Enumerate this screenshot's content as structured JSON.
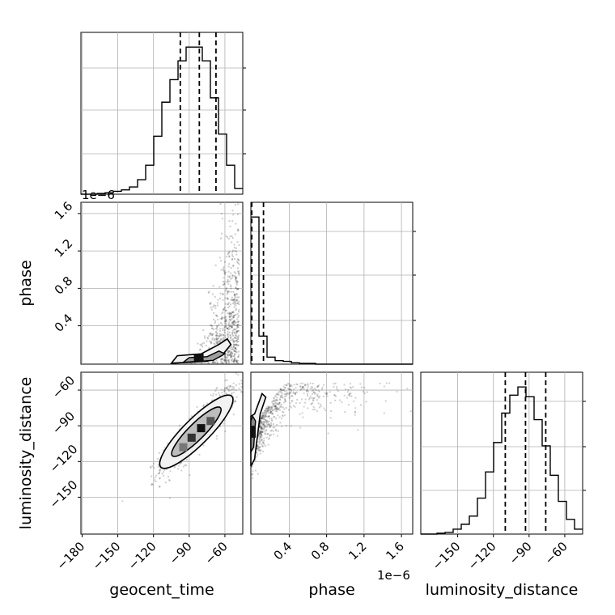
{
  "chart_data": {
    "type": "corner",
    "parameters": [
      "geocent_time",
      "phase",
      "luminosity_distance"
    ],
    "axis_labels": {
      "geocent_time": "geocent_time",
      "phase": "phase",
      "luminosity_distance": "luminosity_distance"
    },
    "ranges": {
      "geocent_time": [
        -181,
        -45
      ],
      "phase": [
        -0.01,
        1.72
      ],
      "luminosity_distance": [
        -181,
        -45
      ]
    },
    "ticks": {
      "geocent_time": {
        "values": [
          -180,
          -150,
          -120,
          -90,
          -60
        ],
        "labels": [
          "−180",
          "−150",
          "−120",
          "−90",
          "−60"
        ]
      },
      "phase": {
        "values": [
          0.4,
          0.8,
          1.2,
          1.6
        ],
        "labels": [
          "0.4",
          "0.8",
          "1.2",
          "1.6"
        ]
      },
      "phase_y": {
        "values": [
          0.4,
          0.8,
          1.2,
          1.6
        ],
        "labels": [
          "0.4",
          "0.8",
          "1.2",
          "1.6"
        ]
      },
      "luminosity_distance": {
        "values": [
          -150,
          -120,
          -90,
          -60
        ],
        "labels": [
          "−150",
          "−120",
          "−90",
          "−60"
        ]
      },
      "luminosity_distance_y": {
        "values": [
          -150,
          -120,
          -90,
          -60
        ],
        "labels": [
          "−150",
          "−120",
          "−90",
          "−60"
        ]
      }
    },
    "offset_texts": {
      "phase_y": "1e−6",
      "phase_x": "1e−6"
    },
    "histograms": {
      "geocent_time": {
        "bin_edges": [
          -181,
          -174.2,
          -167.4,
          -160.6,
          -153.8,
          -147,
          -140.2,
          -133.4,
          -126.6,
          -119.8,
          -113,
          -106.2,
          -99.4,
          -92.6,
          -85.8,
          -79,
          -72.2,
          -65.4,
          -58.6,
          -51.8,
          -45
        ],
        "counts": [
          0,
          0,
          1,
          2,
          4,
          6,
          10,
          20,
          40,
          80,
          127,
          158,
          184,
          203,
          203,
          184,
          133,
          83,
          40,
          8
        ],
        "quantiles": [
          -97.5,
          -81.5,
          -67.5
        ]
      },
      "phase": {
        "bin_edges": [
          -0.01,
          0.0765,
          0.163,
          0.2495,
          0.336,
          0.4225,
          0.509,
          0.5955,
          0.682,
          0.7685,
          0.855,
          0.9415,
          1.028,
          1.1145,
          1.201,
          1.2875,
          1.374,
          1.4605,
          1.547,
          1.6335,
          1.72
        ],
        "counts": [
          210,
          40,
          10,
          5,
          4,
          2,
          1,
          1,
          0,
          0,
          0,
          0,
          0,
          0,
          0,
          0,
          0,
          0,
          0,
          0
        ],
        "quantiles": [
          0.0,
          0.125
        ]
      },
      "luminosity_distance": {
        "bin_edges": [
          -181,
          -174.2,
          -167.4,
          -160.6,
          -153.8,
          -147,
          -140.2,
          -133.4,
          -126.6,
          -119.8,
          -113,
          -106.2,
          -99.4,
          -92.6,
          -85.8,
          -79,
          -72.2,
          -65.4,
          -58.6,
          -51.8,
          -45
        ],
        "counts": [
          0,
          0,
          1,
          2,
          6,
          12,
          22,
          44,
          76,
          112,
          148,
          170,
          180,
          168,
          140,
          108,
          72,
          40,
          18,
          6
        ],
        "quantiles": [
          -110,
          -93,
          -76
        ]
      }
    },
    "scatter_trends": {
      "luminosity_distance_vs_geocent_time": {
        "slope": 1.0,
        "intercept": -11,
        "x_mean": -81.5,
        "x_sd": 16,
        "y_sd": 8
      },
      "phase_vs_geocent_time": {
        "x_peak": -55,
        "note": "phase rises sharply near geocent_time −50"
      },
      "luminosity_distance_vs_phase": {
        "y_peak": -93
      }
    },
    "grid": true
  }
}
